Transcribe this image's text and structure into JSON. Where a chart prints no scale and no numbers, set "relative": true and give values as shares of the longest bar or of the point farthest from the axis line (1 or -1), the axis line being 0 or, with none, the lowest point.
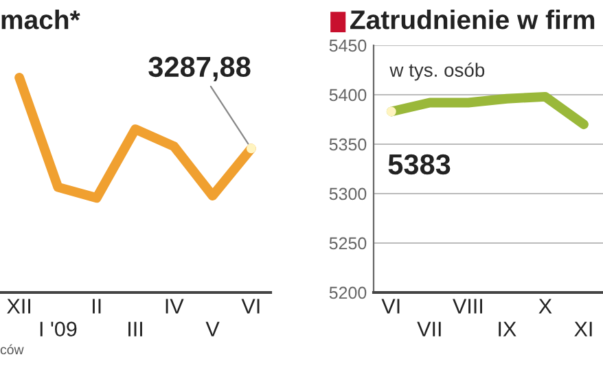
{
  "chart_data": [
    {
      "type": "line",
      "title": "mach*",
      "relative": true,
      "categories": [
        "XII",
        "I '09",
        "II",
        "III",
        "IV",
        "V",
        "VI"
      ],
      "series": [
        {
          "color": "#f0a030",
          "values": [
            1,
            0.49,
            0.44,
            0.76,
            0.68,
            0.45,
            0.67
          ]
        }
      ],
      "annotations": [
        {
          "text": "3287,88",
          "x": "VI"
        },
        "ców"
      ],
      "marker": "none"
    },
    {
      "type": "line",
      "title": "Zatrudnienie w firm",
      "categories": [
        "VI",
        "VII",
        "VIII",
        "IX",
        "X",
        "XI"
      ],
      "series": [
        {
          "color": "#9ab83a",
          "values": [
            5383,
            5392,
            5392,
            5396,
            5398,
            5370
          ],
          "value_labels": [
            "5383",
            null,
            null,
            null,
            null,
            null
          ]
        }
      ],
      "ylim": [
        5200,
        5450
      ],
      "yticks": [
        5200,
        5250,
        5300,
        5350,
        5400,
        5450
      ],
      "grid": "y",
      "annotations": [
        "w tys. osób"
      ],
      "marker": "none"
    }
  ]
}
